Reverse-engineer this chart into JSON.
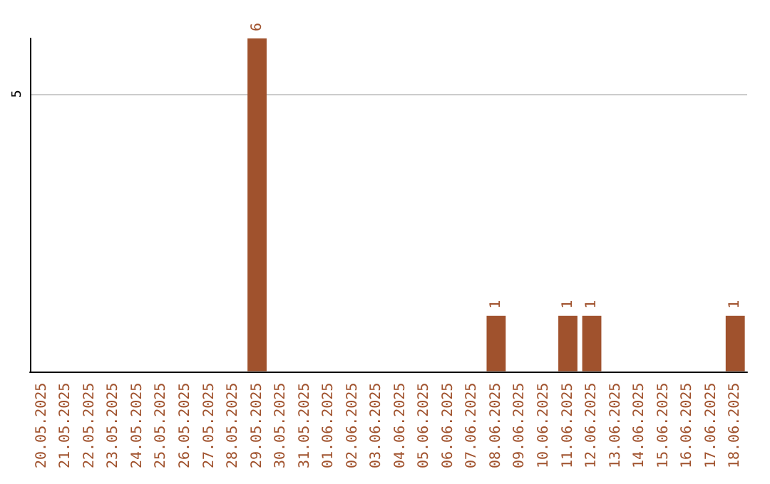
{
  "chart_data": {
    "type": "bar",
    "categories": [
      "20.05.2025",
      "21.05.2025",
      "22.05.2025",
      "23.05.2025",
      "24.05.2025",
      "25.05.2025",
      "26.05.2025",
      "27.05.2025",
      "28.05.2025",
      "29.05.2025",
      "30.05.2025",
      "31.05.2025",
      "01.06.2025",
      "02.06.2025",
      "03.06.2025",
      "04.06.2025",
      "05.06.2025",
      "06.06.2025",
      "07.06.2025",
      "08.06.2025",
      "09.06.2025",
      "10.06.2025",
      "11.06.2025",
      "12.06.2025",
      "13.06.2025",
      "14.06.2025",
      "15.06.2025",
      "16.06.2025",
      "17.06.2025",
      "18.06.2025"
    ],
    "values": [
      0,
      0,
      0,
      0,
      0,
      0,
      0,
      0,
      0,
      6,
      0,
      0,
      0,
      0,
      0,
      0,
      0,
      0,
      0,
      1,
      0,
      0,
      1,
      1,
      0,
      0,
      0,
      0,
      0,
      1
    ],
    "value_labels": [
      null,
      null,
      null,
      null,
      null,
      null,
      null,
      null,
      null,
      "6",
      null,
      null,
      null,
      null,
      null,
      null,
      null,
      null,
      null,
      "1",
      null,
      null,
      "1",
      "1",
      null,
      null,
      null,
      null,
      null,
      "1"
    ],
    "color": "#a0522d",
    "ylim": [
      0,
      6
    ],
    "yticks": [
      5
    ],
    "grid": "y"
  }
}
